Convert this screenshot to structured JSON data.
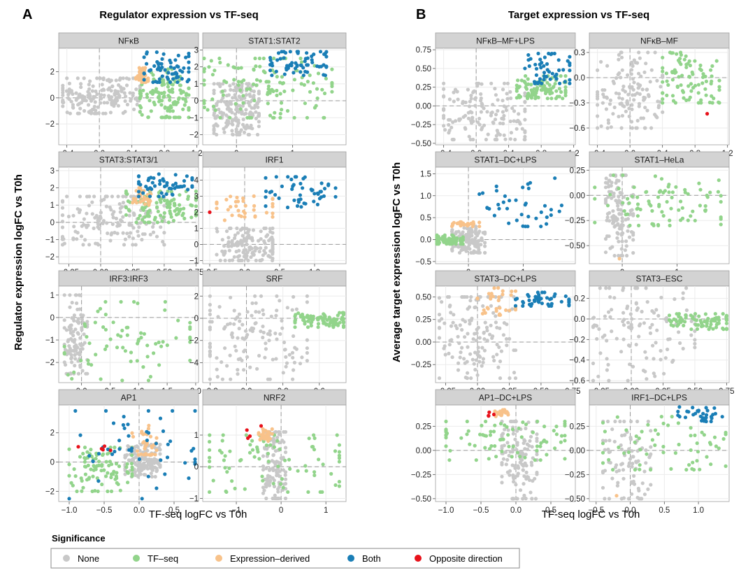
{
  "panel_a": {
    "letter": "A",
    "title": "Regulator expression vs TF-seq",
    "ylabel": "Regulator expression logFC vs T0h",
    "xlabel": "TF-seq logFC vs T0h"
  },
  "panel_b": {
    "letter": "B",
    "title": "Target expression vs TF-seq",
    "ylabel": "Average target expression logFC vs T0h",
    "xlabel": "TF-seq logFC vs T0h"
  },
  "legend": {
    "title": "Significance",
    "items": [
      {
        "label": "None",
        "color": "#c8c8c8"
      },
      {
        "label": "TF–seq",
        "color": "#92d48b"
      },
      {
        "label": "Expression–derived",
        "color": "#f8c28a"
      },
      {
        "label": "Both",
        "color": "#1a7eb6"
      },
      {
        "label": "Opposite direction",
        "color": "#e8111a"
      }
    ]
  },
  "chart_data": [
    {
      "type": "scatter",
      "panel": "A",
      "title": "NFκB",
      "xlim": [
        -0.5,
        1.22
      ],
      "ylim": [
        -3.6,
        3.8
      ],
      "xticks": [
        -0.4,
        0.0,
        0.4,
        0.8,
        1.2
      ],
      "xtick_labels": [
        "-0.4",
        "0.0",
        "0.4",
        "0.8",
        "1.2"
      ],
      "yticks": [
        -2,
        0,
        2
      ],
      "ytick_labels": [
        "−2",
        "0",
        "2"
      ],
      "n_points": 420,
      "composition": {
        "None": [
          -0.45,
          0.5,
          -1.2,
          1.5
        ],
        "TF–seq": [
          0.5,
          1.1,
          -1.5,
          2.2
        ],
        "Both": [
          0.55,
          1.1,
          1.2,
          3.5
        ],
        "Expression–derived": [
          0.45,
          0.6,
          1.2,
          2.3
        ]
      }
    },
    {
      "type": "scatter",
      "panel": "A",
      "title": "STAT1:STAT2",
      "xlim": [
        -0.6,
        1.95
      ],
      "ylim": [
        -2.6,
        3.1
      ],
      "xticks": [
        0,
        1
      ],
      "xtick_labels": [
        "0",
        "1"
      ],
      "yticks": [
        -2,
        -1,
        0,
        1,
        2,
        3
      ],
      "ytick_labels": [
        "−2",
        "−1",
        "0",
        "1",
        "2",
        "3"
      ],
      "n_points": 380,
      "composition": {
        "None": [
          -0.4,
          0.4,
          -2.0,
          1.0
        ],
        "TF–seq": [
          -0.6,
          1.7,
          -1.0,
          2.5
        ],
        "Both": [
          0.6,
          1.6,
          1.5,
          2.9
        ]
      }
    },
    {
      "type": "scatter",
      "panel": "A",
      "title": "STAT3:STAT3/1",
      "xlim": [
        -0.33,
        0.77
      ],
      "ylim": [
        -2.4,
        3.2
      ],
      "xticks": [
        -0.25,
        0.0,
        0.25,
        0.5,
        0.75
      ],
      "xtick_labels": [
        "−0.25",
        "0.00",
        "0.25",
        "0.50",
        "0.75"
      ],
      "yticks": [
        -2,
        -1,
        0,
        1,
        2,
        3
      ],
      "ytick_labels": [
        "−2",
        "−1",
        "0",
        "1",
        "2",
        "3"
      ],
      "n_points": 360,
      "composition": {
        "None": [
          -0.3,
          0.5,
          -1.3,
          1.5
        ],
        "TF–seq": [
          0.2,
          0.75,
          0.0,
          1.8
        ],
        "Expression–derived": [
          0.25,
          0.4,
          1.0,
          2.0
        ],
        "Both": [
          0.3,
          0.72,
          1.5,
          2.8
        ]
      }
    },
    {
      "type": "scatter",
      "panel": "A",
      "title": "IRF1",
      "xlim": [
        -0.6,
        1.45
      ],
      "ylim": [
        -1.2,
        4.8
      ],
      "xticks": [
        -0.5,
        0.0,
        0.5,
        1.0
      ],
      "xtick_labels": [
        "−0.5",
        "0.0",
        "0.5",
        "1.0"
      ],
      "yticks": [
        -1,
        0,
        1,
        2,
        3,
        4
      ],
      "ytick_labels": [
        "−1",
        "0",
        "1",
        "2",
        "3",
        "4"
      ],
      "n_points": 240,
      "composition": {
        "None": [
          -0.4,
          0.4,
          -1.0,
          1.0
        ],
        "Expression–derived": [
          -0.4,
          0.4,
          1.5,
          3.0
        ],
        "Both": [
          0.3,
          1.3,
          2.3,
          4.2
        ],
        "Opposite direction": [
          -0.5,
          -0.5,
          2.0,
          2.0
        ]
      }
    },
    {
      "type": "scatter",
      "panel": "A",
      "title": "IRF3:IRF3",
      "xlim": [
        -0.4,
        2.05
      ],
      "ylim": [
        -2.9,
        1.4
      ],
      "xticks": [
        0.0,
        0.5,
        1.0,
        1.5,
        2.0
      ],
      "xtick_labels": [
        "0.0",
        "0.5",
        "1.0",
        "1.5",
        "2.0"
      ],
      "yticks": [
        -2,
        -1,
        0,
        1
      ],
      "ytick_labels": [
        "−2",
        "−1",
        "0",
        "1"
      ],
      "n_points": 180,
      "composition": {
        "None": [
          -0.3,
          0.1,
          -2.5,
          1.0
        ],
        "TF–seq": [
          -0.3,
          1.9,
          -2.8,
          0.7
        ]
      }
    },
    {
      "type": "scatter",
      "panel": "A",
      "title": "SRF",
      "xlim": [
        -0.36,
        0.82
      ],
      "ylim": [
        -5.8,
        2.9
      ],
      "xticks": [
        -0.3,
        0.0,
        0.3,
        0.6
      ],
      "xtick_labels": [
        "−0.3",
        "0.0",
        "0.3",
        "0.6"
      ],
      "yticks": [
        -4,
        -2,
        0,
        2
      ],
      "ytick_labels": [
        "−4",
        "−2",
        "0",
        "2"
      ],
      "n_points": 220,
      "composition": {
        "None": [
          -0.3,
          0.5,
          -5.5,
          2.0
        ],
        "TF–seq": [
          0.4,
          0.8,
          -0.8,
          0.5
        ]
      }
    },
    {
      "type": "scatter",
      "panel": "A",
      "title": "AP1",
      "xlim": [
        -1.15,
        0.85
      ],
      "ylim": [
        -2.7,
        3.9
      ],
      "xticks": [
        -1.0,
        -0.5,
        0.0,
        0.5
      ],
      "xtick_labels": [
        "−1.0",
        "−0.5",
        "0.0",
        "0.5"
      ],
      "yticks": [
        -2,
        0,
        2
      ],
      "ytick_labels": [
        "−2",
        "0",
        "2"
      ],
      "n_points": 330,
      "composition": {
        "None": [
          -0.2,
          0.3,
          -1.0,
          1.2
        ],
        "TF–seq": [
          -1.0,
          -0.1,
          -2.0,
          1.0
        ],
        "Expression–derived": [
          -0.1,
          0.25,
          0.5,
          2.5
        ],
        "Both": [
          -1.0,
          0.8,
          -2.5,
          3.5
        ],
        "Opposite direction": [
          -1.05,
          -0.4,
          0.8,
          1.4
        ]
      }
    },
    {
      "type": "scatter",
      "panel": "A",
      "title": "NRF2",
      "xlim": [
        -1.75,
        1.45
      ],
      "ylim": [
        -1.1,
        1.95
      ],
      "xticks": [
        -1,
        0,
        1
      ],
      "xtick_labels": [
        "−1",
        "0",
        "1"
      ],
      "yticks": [
        -1,
        0,
        1
      ],
      "ytick_labels": [
        "−1",
        "0",
        "1"
      ],
      "n_points": 240,
      "composition": {
        "None": [
          -0.4,
          0.1,
          -1.0,
          1.1
        ],
        "TF–seq": [
          -1.6,
          1.3,
          -0.8,
          1.0
        ],
        "Opposite direction": [
          -0.9,
          -0.4,
          0.8,
          1.3
        ],
        "Expression–derived": [
          -0.5,
          -0.2,
          0.8,
          1.2
        ]
      }
    },
    {
      "type": "scatter",
      "panel": "B",
      "title": "NFκB–MF+LPS",
      "xlim": [
        -0.5,
        1.22
      ],
      "ylim": [
        -0.52,
        0.77
      ],
      "xticks": [
        -0.4,
        0.0,
        0.4,
        0.8,
        1.2
      ],
      "xtick_labels": [
        "−0.4",
        "0.0",
        "0.4",
        "0.8",
        "1.2"
      ],
      "yticks": [
        -0.5,
        -0.25,
        0.0,
        0.25,
        0.5,
        0.75
      ],
      "ytick_labels": [
        "−0.50",
        "−0.25",
        "0.00",
        "0.25",
        "0.50",
        "0.75"
      ],
      "n_points": 300,
      "composition": {
        "None": [
          -0.4,
          0.6,
          -0.45,
          0.3
        ],
        "TF–seq": [
          0.5,
          1.1,
          0.1,
          0.4
        ],
        "Both": [
          0.6,
          1.15,
          0.3,
          0.7
        ]
      }
    },
    {
      "type": "scatter",
      "panel": "B",
      "title": "NFκB–MF",
      "xlim": [
        -0.5,
        1.22
      ],
      "ylim": [
        -0.8,
        0.35
      ],
      "xticks": [
        -0.4,
        0.0,
        0.4,
        0.8,
        1.2
      ],
      "xtick_labels": [
        "−0.4",
        "0.0",
        "0.4",
        "0.8",
        "1.2"
      ],
      "yticks": [
        -0.6,
        -0.3,
        0.0,
        0.3
      ],
      "ytick_labels": [
        "−0.6",
        "−0.3",
        "0.0",
        "0.3"
      ],
      "n_points": 230,
      "composition": {
        "None": [
          -0.4,
          0.4,
          -0.6,
          0.3
        ],
        "TF–seq": [
          0.4,
          1.1,
          -0.3,
          0.3
        ],
        "Opposite direction": [
          0.95,
          0.95,
          -0.43,
          -0.43
        ]
      }
    },
    {
      "type": "scatter",
      "panel": "B",
      "title": "STAT1–DC+LPS",
      "xlim": [
        -0.6,
        1.95
      ],
      "ylim": [
        -0.55,
        1.65
      ],
      "xticks": [
        0,
        1
      ],
      "xtick_labels": [
        "0",
        "1"
      ],
      "yticks": [
        -0.5,
        0.0,
        0.5,
        1.0,
        1.5
      ],
      "ytick_labels": [
        "−0.5",
        "0.0",
        "0.5",
        "1.0",
        "1.5"
      ],
      "n_points": 260,
      "composition": {
        "None": [
          -0.3,
          0.3,
          -0.3,
          0.3
        ],
        "TF–seq": [
          -0.6,
          -0.1,
          -0.1,
          0.1
        ],
        "Both": [
          0.2,
          1.7,
          0.3,
          1.4
        ],
        "Expression–derived": [
          -0.3,
          0.2,
          0.3,
          0.4
        ]
      }
    },
    {
      "type": "scatter",
      "panel": "B",
      "title": "STAT1–HeLa",
      "xlim": [
        -0.6,
        1.95
      ],
      "ylim": [
        -0.68,
        0.28
      ],
      "xticks": [
        0,
        1
      ],
      "xtick_labels": [
        "0",
        "1"
      ],
      "yticks": [
        -0.5,
        -0.25,
        0.0,
        0.25
      ],
      "ytick_labels": [
        "−0.50",
        "−0.25",
        "0.00",
        "0.25"
      ],
      "n_points": 240,
      "composition": {
        "None": [
          -0.3,
          0.2,
          -0.6,
          0.2
        ],
        "TF–seq": [
          -0.5,
          1.8,
          -0.3,
          0.2
        ],
        "Expression–derived": [
          -0.05,
          -0.05,
          -0.63,
          -0.63
        ]
      }
    },
    {
      "type": "scatter",
      "panel": "B",
      "title": "STAT3–DC+LPS",
      "xlim": [
        -0.33,
        0.77
      ],
      "ylim": [
        -0.45,
        0.62
      ],
      "xticks": [
        -0.25,
        0.0,
        0.25,
        0.5,
        0.75
      ],
      "xtick_labels": [
        "−0.25",
        "0.00",
        "0.25",
        "0.50",
        "0.75"
      ],
      "yticks": [
        -0.25,
        0.0,
        0.25,
        0.5
      ],
      "ytick_labels": [
        "−0.25",
        "0.00",
        "0.25",
        "0.50"
      ],
      "n_points": 220,
      "composition": {
        "None": [
          -0.3,
          0.3,
          -0.4,
          0.5
        ],
        "Expression–derived": [
          0.0,
          0.3,
          0.3,
          0.6
        ],
        "Both": [
          0.3,
          0.72,
          0.4,
          0.55
        ]
      }
    },
    {
      "type": "scatter",
      "panel": "B",
      "title": "STAT3–ESC",
      "xlim": [
        -0.33,
        0.77
      ],
      "ylim": [
        -0.62,
        0.32
      ],
      "xticks": [
        -0.25,
        0.0,
        0.25,
        0.5,
        0.75
      ],
      "xtick_labels": [
        "−0.25",
        "0.00",
        "0.25",
        "0.50",
        "0.75"
      ],
      "yticks": [
        -0.6,
        -0.4,
        -0.2,
        0.0,
        0.2
      ],
      "ytick_labels": [
        "−0.6",
        "−0.4",
        "−0.2",
        "0.0",
        "0.2"
      ],
      "n_points": 200,
      "composition": {
        "None": [
          -0.3,
          0.5,
          -0.6,
          0.3
        ],
        "TF–seq": [
          0.3,
          0.75,
          -0.1,
          0.05
        ]
      }
    },
    {
      "type": "scatter",
      "panel": "B",
      "title": "AP1–DC+LPS",
      "xlim": [
        -1.15,
        0.85
      ],
      "ylim": [
        -0.53,
        0.47
      ],
      "xticks": [
        -1.0,
        -0.5,
        0.0,
        0.5
      ],
      "xtick_labels": [
        "−1.0",
        "−0.5",
        "0.0",
        "0.5"
      ],
      "yticks": [
        -0.5,
        -0.25,
        0.0,
        0.25
      ],
      "ytick_labels": [
        "−0.50",
        "−0.25",
        "0.00",
        "0.25"
      ],
      "n_points": 230,
      "composition": {
        "None": [
          -0.2,
          0.3,
          -0.5,
          0.3
        ],
        "TF–seq": [
          -1.0,
          0.7,
          -0.1,
          0.3
        ],
        "Opposite direction": [
          -0.4,
          -0.3,
          0.3,
          0.4
        ],
        "Expression–derived": [
          -0.3,
          -0.1,
          0.35,
          0.42
        ]
      }
    },
    {
      "type": "scatter",
      "panel": "B",
      "title": "IRF1–DC+LPS",
      "xlim": [
        -0.6,
        1.45
      ],
      "ylim": [
        -0.53,
        0.47
      ],
      "xticks": [
        -0.5,
        0.0,
        0.5,
        1.0
      ],
      "xtick_labels": [
        "−0.5",
        "0.0",
        "0.5",
        "1.0"
      ],
      "yticks": [
        -0.5,
        -0.25,
        0.0,
        0.25
      ],
      "ytick_labels": [
        "−0.50",
        "−0.25",
        "0.00",
        "0.25"
      ],
      "n_points": 210,
      "composition": {
        "None": [
          -0.4,
          0.3,
          -0.5,
          0.3
        ],
        "TF–seq": [
          -0.4,
          1.4,
          -0.2,
          0.35
        ],
        "Both": [
          0.7,
          1.35,
          0.3,
          0.45
        ],
        "Expression–derived": [
          -0.2,
          -0.2,
          -0.47,
          -0.47
        ]
      }
    }
  ]
}
